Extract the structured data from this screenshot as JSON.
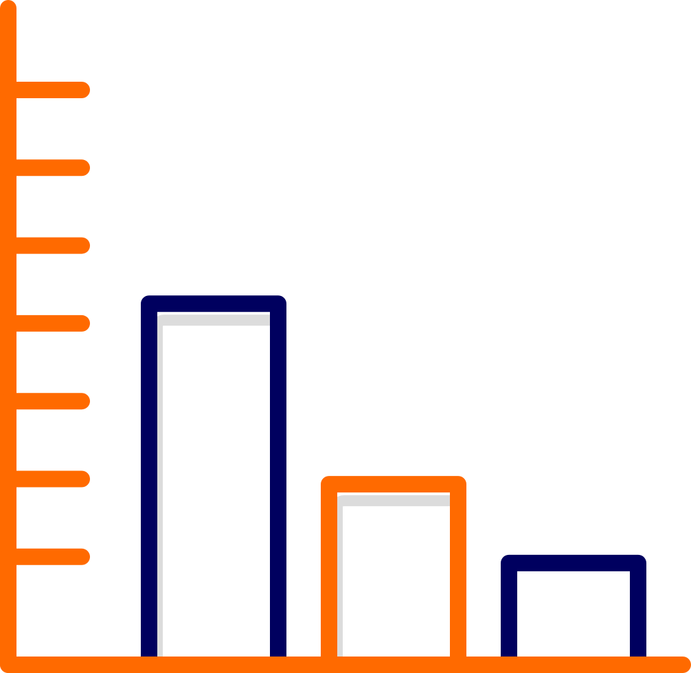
{
  "icon": {
    "name": "bar-chart-icon",
    "bars": [
      {
        "level": 0.55,
        "style": "navy"
      },
      {
        "level": 0.275,
        "style": "orange"
      },
      {
        "level": 0.155,
        "style": "navy"
      }
    ],
    "axis_tick_count": 7,
    "colors": {
      "axis": "#ff6a00",
      "navy": "#00005f",
      "orange": "#ff6a00",
      "shadow": "#dcdcdc",
      "background": "#ffffff"
    }
  }
}
